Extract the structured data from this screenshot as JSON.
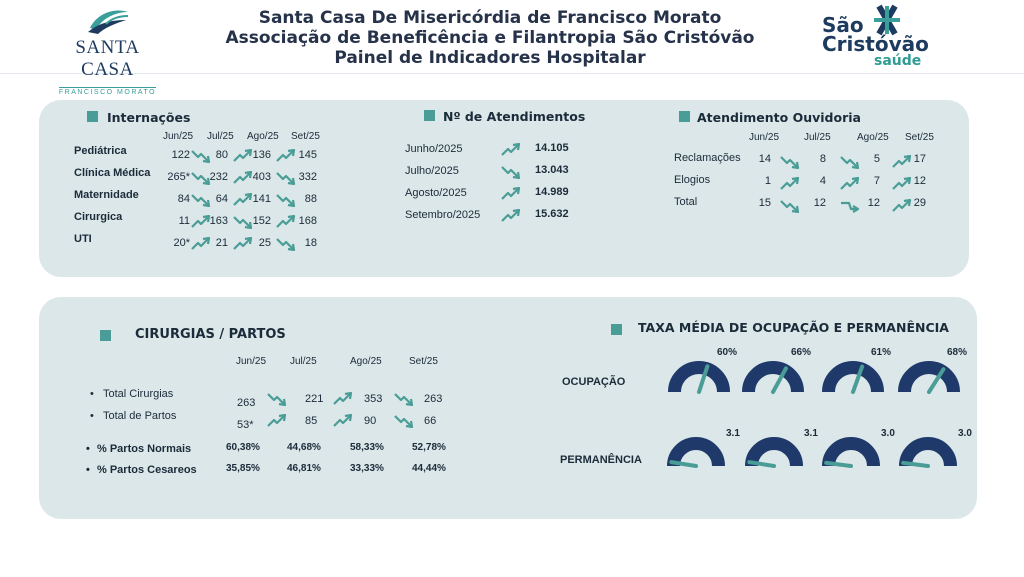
{
  "header": {
    "title_line1": "Santa Casa De Misericórdia de Francisco Morato",
    "title_line2": "Associação de Beneficência e Filantropia São Cristóvão",
    "title_line3": "Painel de Indicadores Hospitalar",
    "logo_left_name": "SANTA CASA",
    "logo_left_sub": "FRANCISCO MORATO",
    "logo_right_line1": "São",
    "logo_right_line2": "Cristóvão",
    "logo_right_line3": "saúde"
  },
  "internacoes": {
    "title": "Internações",
    "months": [
      "Jun/25",
      "Jul/25",
      "Ago/25",
      "Set/25"
    ],
    "rows": [
      {
        "label": "Pediátrica",
        "values": [
          "122",
          "80",
          "136",
          "145"
        ],
        "trends": [
          "down",
          "up",
          "up"
        ]
      },
      {
        "label": "Clínica Médica",
        "values": [
          "265*",
          "232",
          "403",
          "332"
        ],
        "trends": [
          "down",
          "up",
          "down"
        ]
      },
      {
        "label": "Maternidade",
        "values": [
          "84",
          "64",
          "141",
          "88"
        ],
        "trends": [
          "down",
          "up",
          "down"
        ]
      },
      {
        "label": "Cirurgica",
        "values": [
          "11",
          "163",
          "152",
          "168"
        ],
        "trends": [
          "up",
          "down",
          "up"
        ]
      },
      {
        "label": "UTI",
        "values": [
          "20*",
          "21",
          "25",
          "18"
        ],
        "trends": [
          "up",
          "up",
          "down"
        ]
      }
    ]
  },
  "atendimentos": {
    "title": "Nº de Atendimentos",
    "rows": [
      {
        "label": "Junho/2025",
        "value": "14.105",
        "trend": "up"
      },
      {
        "label": "Julho/2025",
        "value": "13.043",
        "trend": "down"
      },
      {
        "label": "Agosto/2025",
        "value": "14.989",
        "trend": "up"
      },
      {
        "label": "Setembro/2025",
        "value": "15.632",
        "trend": "up"
      }
    ]
  },
  "ouvidoria": {
    "title": "Atendimento Ouvidoria",
    "months": [
      "Jun/25",
      "Jul/25",
      "Ago/25",
      "Set/25"
    ],
    "rows": [
      {
        "label": "Reclamações",
        "values": [
          "14",
          "8",
          "5",
          "17"
        ],
        "trends": [
          "down",
          "down",
          "up"
        ]
      },
      {
        "label": "Elogios",
        "values": [
          "1",
          "4",
          "7",
          "12"
        ],
        "trends": [
          "up",
          "up",
          "up"
        ]
      },
      {
        "label": "Total",
        "values": [
          "15",
          "12",
          "12",
          "29"
        ],
        "trends": [
          "down",
          "flat",
          "up"
        ]
      }
    ]
  },
  "cirurgias": {
    "title": "CIRURGIAS / PARTOS",
    "months": [
      "Jun/25",
      "Jul/25",
      "Ago/25",
      "Set/25"
    ],
    "rows": [
      {
        "label": "Total Cirurgias",
        "values": [
          "263",
          "221",
          "353",
          "263"
        ],
        "trends": [
          "down",
          "up",
          "down"
        ]
      },
      {
        "label": "Total de Partos",
        "values": [
          "53*",
          "85",
          "90",
          "66"
        ],
        "trends": [
          "up",
          "up",
          "down"
        ]
      }
    ],
    "pct_rows": [
      {
        "label": "% Partos Normais",
        "values": [
          "60,38%",
          "44,68%",
          "58,33%",
          "52,78%"
        ]
      },
      {
        "label": "% Partos Cesareos",
        "values": [
          "35,85%",
          "46,81%",
          "33,33%",
          "44,44%"
        ]
      }
    ]
  },
  "taxa": {
    "title": "TAXA MÉDIA DE OCUPAÇÃO E PERMANÊNCIA",
    "ocupacao_label": "OCUPAÇÃO",
    "permanencia_label": "PERMANÊNCIA",
    "ocupacao": [
      {
        "label": "60%",
        "fraction": 0.6
      },
      {
        "label": "66%",
        "fraction": 0.66
      },
      {
        "label": "61%",
        "fraction": 0.61
      },
      {
        "label": "68%",
        "fraction": 0.68
      }
    ],
    "permanencia": [
      {
        "label": "3.1",
        "fraction": 0.05
      },
      {
        "label": "3.1",
        "fraction": 0.05
      },
      {
        "label": "3.0",
        "fraction": 0.04
      },
      {
        "label": "3.0",
        "fraction": 0.04
      }
    ]
  },
  "colors": {
    "accent": "#4a9d97",
    "navy": "#1f3a6a",
    "panel": "#dbe7e8"
  }
}
